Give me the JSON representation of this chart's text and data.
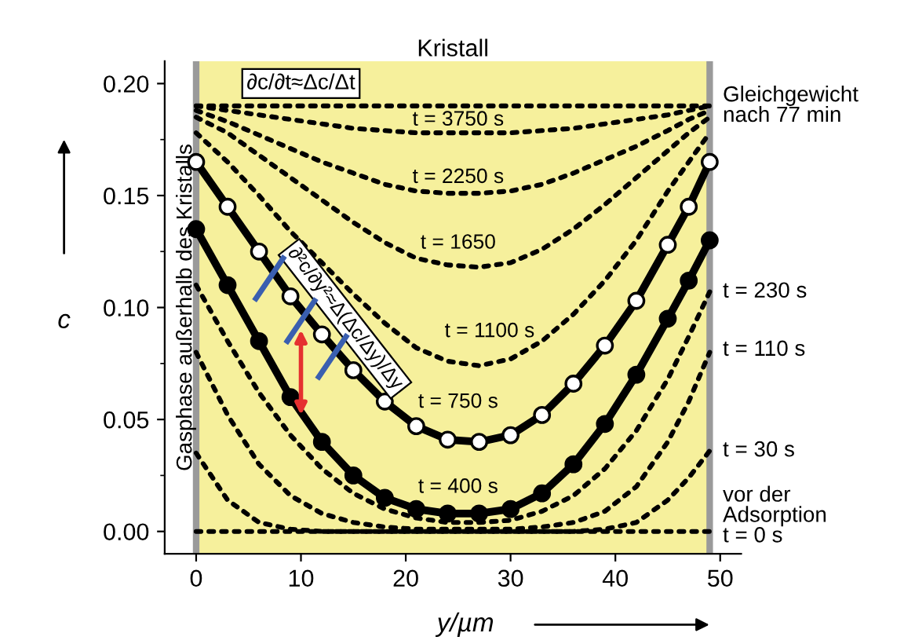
{
  "chart_data": {
    "type": "line",
    "xlabel": "y/µm",
    "ylabel": "c",
    "x": [
      0,
      3,
      6,
      9,
      12,
      15,
      18,
      21,
      24,
      27,
      30,
      33,
      36,
      39,
      42,
      45,
      47,
      49
    ],
    "series": [
      {
        "color": "#000000",
        "line_style": "dotted",
        "values": [
          0.19,
          0.188,
          0.186,
          0.184,
          0.182,
          0.18,
          0.179,
          0.178,
          0.178,
          0.178,
          0.178,
          0.179,
          0.18,
          0.182,
          0.184,
          0.186,
          0.188,
          0.19
        ]
      },
      {
        "color": "#000000",
        "line_style": "dotted",
        "values": [
          0.188,
          0.183,
          0.177,
          0.171,
          0.165,
          0.16,
          0.155,
          0.152,
          0.151,
          0.151,
          0.152,
          0.155,
          0.16,
          0.166,
          0.172,
          0.179,
          0.184,
          0.188
        ]
      },
      {
        "color": "#000000",
        "line_style": "dotted",
        "values": [
          0.185,
          0.178,
          0.168,
          0.158,
          0.148,
          0.138,
          0.129,
          0.122,
          0.119,
          0.118,
          0.12,
          0.126,
          0.135,
          0.146,
          0.158,
          0.17,
          0.178,
          0.185
        ]
      },
      {
        "color": "#000000",
        "line_style": "dotted",
        "values": [
          0.178,
          0.165,
          0.15,
          0.134,
          0.12,
          0.106,
          0.093,
          0.082,
          0.076,
          0.074,
          0.077,
          0.085,
          0.097,
          0.112,
          0.13,
          0.152,
          0.165,
          0.178
        ]
      },
      {
        "color": "#ffffff",
        "marker": "circle",
        "values": [
          0.165,
          0.145,
          0.125,
          0.105,
          0.088,
          0.072,
          0.058,
          0.047,
          0.041,
          0.04,
          0.043,
          0.052,
          0.066,
          0.083,
          0.103,
          0.128,
          0.145,
          0.165
        ]
      },
      {
        "color": "#000000",
        "marker": "circle",
        "values": [
          0.135,
          0.11,
          0.085,
          0.06,
          0.04,
          0.025,
          0.015,
          0.01,
          0.008,
          0.008,
          0.01,
          0.017,
          0.03,
          0.048,
          0.07,
          0.095,
          0.112,
          0.13
        ]
      },
      {
        "color": "#000000",
        "line_style": "dotted",
        "values": [
          0.11,
          0.085,
          0.062,
          0.043,
          0.028,
          0.017,
          0.01,
          0.006,
          0.004,
          0.004,
          0.005,
          0.009,
          0.016,
          0.028,
          0.045,
          0.068,
          0.087,
          0.107
        ]
      },
      {
        "color": "#000000",
        "line_style": "dotted",
        "values": [
          0.08,
          0.052,
          0.03,
          0.016,
          0.008,
          0.004,
          0.002,
          0.001,
          0.001,
          0.001,
          0.001,
          0.002,
          0.004,
          0.009,
          0.02,
          0.04,
          0.058,
          0.08
        ]
      },
      {
        "color": "#000000",
        "line_style": "dotted",
        "values": [
          0.035,
          0.014,
          0.004,
          0.001,
          0,
          0,
          0,
          0,
          0,
          0,
          0,
          0,
          0,
          0.001,
          0.004,
          0.014,
          0.024,
          0.036
        ]
      },
      {
        "color": "#000000",
        "line_style": "dotted",
        "values": [
          0,
          0,
          0,
          0,
          0,
          0,
          0,
          0,
          0,
          0,
          0,
          0,
          0,
          0,
          0,
          0,
          0,
          0
        ]
      }
    ],
    "xlim": [
      -3,
      52
    ],
    "ylim": [
      -0.01,
      0.21
    ],
    "xticks": [
      0,
      10,
      20,
      30,
      40,
      50
    ],
    "yticks": [
      {
        "value": 0,
        "label": "0.00"
      },
      {
        "value": 0.05,
        "label": "0.05"
      },
      {
        "value": 0.1,
        "label": "0.10"
      },
      {
        "value": 0.15,
        "label": "0.15"
      },
      {
        "value": 0.2,
        "label": "0.20"
      }
    ],
    "bands": [
      {
        "axis": "x",
        "from": 0,
        "to": 49,
        "label": "Kristall",
        "color": "#f6f09c"
      }
    ],
    "ref_lines": [
      {
        "axis": "x",
        "value": 0,
        "label": "Gasphase außerhalb des Kristalls",
        "color": "#9a9a9a"
      },
      {
        "axis": "x",
        "value": 49,
        "color": "#9a9a9a"
      },
      {
        "axis": "y",
        "value": 0.19,
        "label": "Gleichgewicht\nnach 77 min",
        "color": "#000000",
        "line_style": "dotted"
      }
    ],
    "annotations": [
      {
        "text": "t = 3750 s",
        "x": 25,
        "y": 0.178
      },
      {
        "text": "t = 2250 s",
        "x": 25,
        "y": 0.151
      },
      {
        "text": "t = 1650",
        "x": 25,
        "y": 0.118
      },
      {
        "text": "t = 1100 s",
        "x": 28,
        "y": 0.075
      },
      {
        "text": "t = 750 s",
        "x": 25,
        "y": 0.04
      },
      {
        "text": "t = 400 s",
        "x": 25,
        "y": 0.008
      },
      {
        "text": "t = 230 s",
        "x": 49,
        "y": 0.107
      },
      {
        "text": "t = 110 s",
        "x": 49,
        "y": 0.081
      },
      {
        "text": "t = 30 s",
        "x": 49,
        "y": 0.036
      },
      {
        "text": "vor der\nAdsorption\nt = 0 s",
        "x": 49,
        "y": 0
      },
      "∂²c/∂y²≈Δ(Δc/Δy)/Δy",
      "∂c/∂t≈Δc/Δt"
    ],
    "grid": false,
    "legend": false
  }
}
